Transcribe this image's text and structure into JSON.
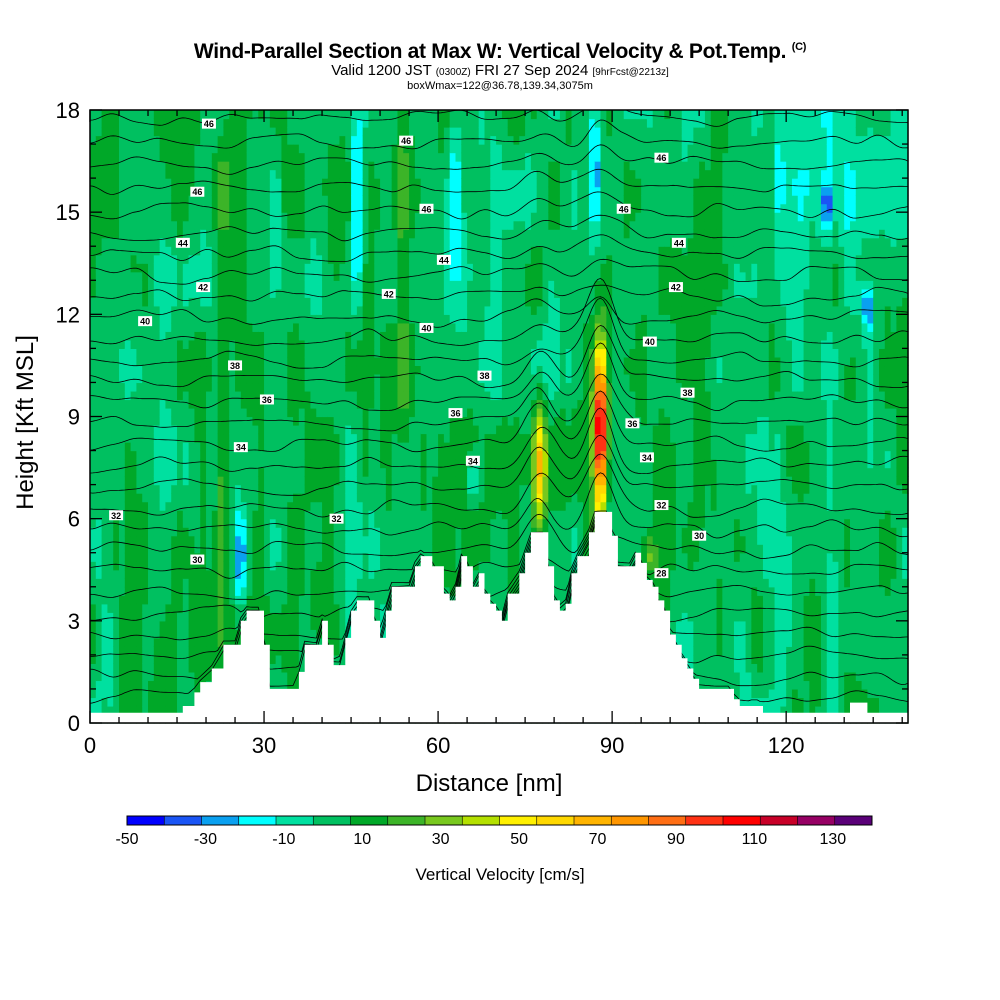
{
  "header": {
    "title": "Wind-Parallel Section at Max W: Vertical Velocity & Pot.Temp.",
    "copyright": "(C)",
    "valid_prefix": "Valid 1200 JST",
    "valid_utc": "(0300Z)",
    "valid_date": "FRI 27 Sep 2024",
    "forecast": "[9hrFcst@2213z]",
    "boxwmax": "boxWmax=122@36.78,139.34,3075m"
  },
  "chart_data": {
    "type": "heatmap",
    "xlabel": "Distance [nm]",
    "ylabel": "Height [Kft MSL]",
    "xlim": [
      0,
      141
    ],
    "ylim": [
      0,
      18
    ],
    "x_ticks": [
      0,
      30,
      60,
      90,
      120
    ],
    "y_ticks": [
      0,
      3,
      6,
      9,
      12,
      15,
      18
    ],
    "terrain_kft": [
      [
        0,
        0.3
      ],
      [
        15,
        0.3
      ],
      [
        16,
        0.5
      ],
      [
        18,
        0.9
      ],
      [
        19,
        1.2
      ],
      [
        21,
        1.6
      ],
      [
        23,
        2.3
      ],
      [
        25,
        2.3
      ],
      [
        26,
        3.0
      ],
      [
        27,
        3.3
      ],
      [
        29,
        3.3
      ],
      [
        30,
        2.3
      ],
      [
        31,
        1.0
      ],
      [
        35,
        1.0
      ],
      [
        36,
        1.5
      ],
      [
        37,
        2.3
      ],
      [
        39,
        2.3
      ],
      [
        40,
        3.0
      ],
      [
        41,
        2.3
      ],
      [
        42,
        1.7
      ],
      [
        43,
        1.7
      ],
      [
        44,
        2.5
      ],
      [
        45,
        3.3
      ],
      [
        46,
        3.6
      ],
      [
        48,
        3.6
      ],
      [
        49,
        3.0
      ],
      [
        50,
        2.5
      ],
      [
        51,
        3.3
      ],
      [
        52,
        4.0
      ],
      [
        55,
        4.0
      ],
      [
        56,
        4.6
      ],
      [
        57,
        4.9
      ],
      [
        59,
        4.6
      ],
      [
        61,
        3.8
      ],
      [
        62,
        3.6
      ],
      [
        63,
        4.0
      ],
      [
        64,
        4.9
      ],
      [
        65,
        4.6
      ],
      [
        66,
        4.0
      ],
      [
        67,
        4.4
      ],
      [
        68,
        3.8
      ],
      [
        69,
        3.5
      ],
      [
        70,
        3.3
      ],
      [
        71,
        3.0
      ],
      [
        72,
        3.8
      ],
      [
        74,
        4.4
      ],
      [
        75,
        5.0
      ],
      [
        76,
        5.6
      ],
      [
        78,
        5.6
      ],
      [
        79,
        4.6
      ],
      [
        80,
        3.6
      ],
      [
        81,
        3.3
      ],
      [
        82,
        3.5
      ],
      [
        83,
        4.4
      ],
      [
        84,
        4.9
      ],
      [
        86,
        5.6
      ],
      [
        87,
        6.2
      ],
      [
        89,
        6.2
      ],
      [
        90,
        5.5
      ],
      [
        91,
        4.6
      ],
      [
        93,
        4.6
      ],
      [
        94,
        5.0
      ],
      [
        95,
        4.7
      ],
      [
        96,
        4.2
      ],
      [
        97,
        4.0
      ],
      [
        98,
        3.6
      ],
      [
        99,
        3.3
      ],
      [
        100,
        2.6
      ],
      [
        101,
        2.3
      ],
      [
        102,
        1.9
      ],
      [
        103,
        1.6
      ],
      [
        104,
        1.3
      ],
      [
        105,
        1.0
      ],
      [
        110,
        1.0
      ],
      [
        111,
        0.7
      ],
      [
        112,
        0.5
      ],
      [
        115,
        0.5
      ],
      [
        116,
        0.3
      ],
      [
        130,
        0.3
      ],
      [
        131,
        0.6
      ],
      [
        133,
        0.6
      ],
      [
        134,
        0.3
      ],
      [
        141,
        0.3
      ]
    ],
    "updrafts_cm_s": [
      {
        "x": 88,
        "z_bottom": 6.2,
        "z_top": 11.2,
        "w_max": 122
      },
      {
        "x": 77.5,
        "z_bottom": 5.6,
        "z_top": 9.6,
        "w_max": 70
      },
      {
        "x": 54,
        "z_bottom": 6,
        "z_top": 18,
        "w_max": 25
      },
      {
        "x": 23,
        "z_bottom": 2.3,
        "z_top": 18,
        "w_max": 25
      },
      {
        "x": 39,
        "z_bottom": 2.3,
        "z_top": 4.6,
        "w_max": 22
      },
      {
        "x": 96.5,
        "z_bottom": 4.2,
        "z_top": 5.6,
        "w_max": 35
      }
    ],
    "downdrafts_cm_s": [
      {
        "x": 46,
        "z_bottom": 12,
        "z_top": 18,
        "w_min": -35
      },
      {
        "x": 63,
        "z_bottom": 13,
        "z_top": 18,
        "w_min": -25
      },
      {
        "x": 87,
        "z_bottom": 14,
        "z_top": 18,
        "w_min": -30
      },
      {
        "x": 26,
        "z_bottom": 3.3,
        "z_top": 6.5,
        "w_min": -35
      },
      {
        "x": 134,
        "z_bottom": 11.5,
        "z_top": 13,
        "w_min": -30
      },
      {
        "x": 127,
        "z_bottom": 14.5,
        "z_top": 16,
        "w_min": -25
      },
      {
        "x": 66,
        "z_bottom": 6.5,
        "z_top": 8,
        "w_min": -20
      }
    ],
    "theta_contour_labels": [
      {
        "value": "46",
        "x": 20.5,
        "z": 17.6
      },
      {
        "value": "46",
        "x": 54.5,
        "z": 17.1
      },
      {
        "value": "46",
        "x": 98.5,
        "z": 16.6
      },
      {
        "value": "46",
        "x": 18.5,
        "z": 15.6
      },
      {
        "value": "46",
        "x": 58,
        "z": 15.1
      },
      {
        "value": "46",
        "x": 92,
        "z": 15.1
      },
      {
        "value": "44",
        "x": 16,
        "z": 14.1
      },
      {
        "value": "44",
        "x": 61,
        "z": 13.6
      },
      {
        "value": "44",
        "x": 101.5,
        "z": 14.1
      },
      {
        "value": "42",
        "x": 19.5,
        "z": 12.8
      },
      {
        "value": "42",
        "x": 51.5,
        "z": 12.6
      },
      {
        "value": "42",
        "x": 101,
        "z": 12.8
      },
      {
        "value": "40",
        "x": 9.5,
        "z": 11.8
      },
      {
        "value": "40",
        "x": 58,
        "z": 11.6
      },
      {
        "value": "40",
        "x": 96.5,
        "z": 11.2
      },
      {
        "value": "38",
        "x": 25,
        "z": 10.5
      },
      {
        "value": "38",
        "x": 68,
        "z": 10.2
      },
      {
        "value": "38",
        "x": 103,
        "z": 9.7
      },
      {
        "value": "36",
        "x": 30.5,
        "z": 9.5
      },
      {
        "value": "36",
        "x": 63,
        "z": 9.1
      },
      {
        "value": "36",
        "x": 93.5,
        "z": 8.8
      },
      {
        "value": "34",
        "x": 26,
        "z": 8.1
      },
      {
        "value": "34",
        "x": 66,
        "z": 7.7
      },
      {
        "value": "34",
        "x": 96,
        "z": 7.8
      },
      {
        "value": "32",
        "x": 4.5,
        "z": 6.1
      },
      {
        "value": "32",
        "x": 42.5,
        "z": 6.0
      },
      {
        "value": "32",
        "x": 98.5,
        "z": 6.4
      },
      {
        "value": "30",
        "x": 18.5,
        "z": 4.8
      },
      {
        "value": "30",
        "x": 105,
        "z": 5.5
      },
      {
        "value": "28",
        "x": 98.5,
        "z": 4.4
      }
    ]
  },
  "colorbar": {
    "title": "Vertical Velocity [cm/s]",
    "tick_labels": [
      "-50",
      "-30",
      "-10",
      "10",
      "30",
      "50",
      "70",
      "90",
      "110",
      "130"
    ],
    "bounds": [
      -50,
      140
    ],
    "colors": [
      "#0000ff",
      "#1a55f5",
      "#0aa0f0",
      "#00ffff",
      "#00e0a0",
      "#00c060",
      "#00a828",
      "#3cb428",
      "#78c81e",
      "#b4e000",
      "#fff000",
      "#ffd800",
      "#ffb400",
      "#ff9600",
      "#ff6e14",
      "#ff3214",
      "#ff0000",
      "#c80028",
      "#960064",
      "#5a0078"
    ]
  }
}
